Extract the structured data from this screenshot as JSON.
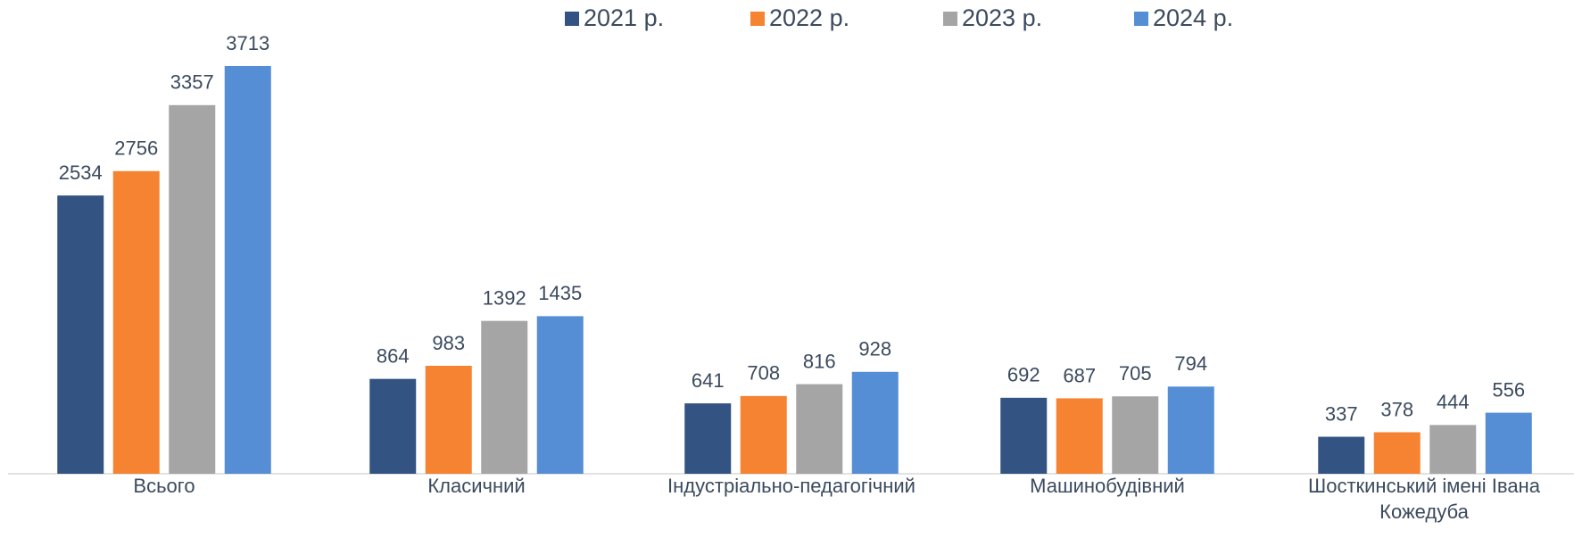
{
  "chart_data": {
    "type": "bar",
    "categories": [
      "Всього",
      "Класичний",
      "Індустріально-педагогічний",
      "Машинобудівний",
      "Шосткинський імені Івана Кожедуба"
    ],
    "series": [
      {
        "name": "2021 р.",
        "color": "#335383",
        "values": [
          2534,
          864,
          641,
          692,
          337
        ]
      },
      {
        "name": "2022 р.",
        "color": "#f58331",
        "values": [
          2756,
          983,
          708,
          687,
          378
        ]
      },
      {
        "name": "2023 р.",
        "color": "#a5a5a5",
        "values": [
          3357,
          1392,
          816,
          705,
          444
        ]
      },
      {
        "name": "2024 р.",
        "color": "#558ed5",
        "values": [
          3713,
          1435,
          928,
          794,
          556
        ]
      }
    ]
  }
}
